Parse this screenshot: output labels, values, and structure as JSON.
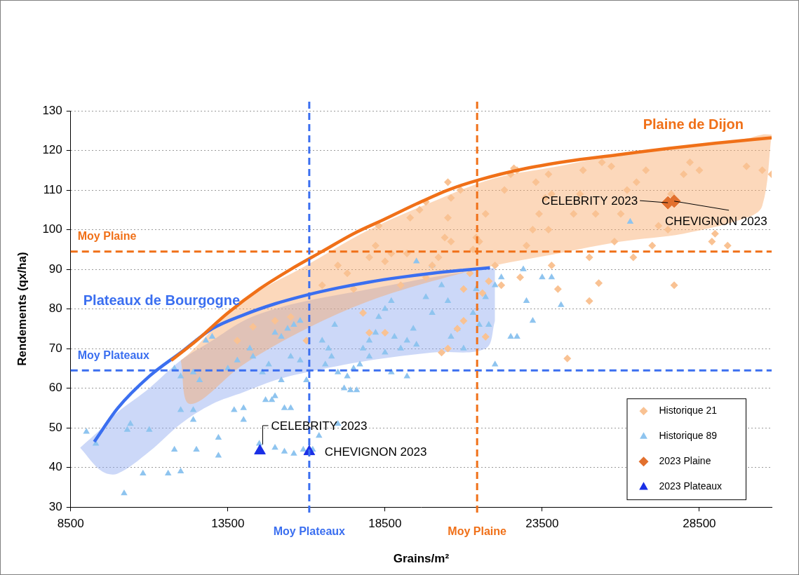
{
  "chart_data": {
    "type": "scatter",
    "x_label": "Grains/m²",
    "y_label": "Rendements (qx/ha)",
    "xlim": [
      8500,
      30800
    ],
    "xticks": [
      8500,
      13500,
      18500,
      23500,
      28500
    ],
    "ylim": [
      30,
      130
    ],
    "yticks": [
      30,
      40,
      50,
      60,
      70,
      80,
      90,
      100,
      110,
      120,
      130
    ],
    "grid": true,
    "legend": "lower right",
    "series": [
      {
        "name": "Historique 21",
        "color": "#f9c293",
        "marker": "diamond",
        "x": [
          13800,
          14300,
          15000,
          15500,
          16000,
          16500,
          17000,
          17300,
          17500,
          17800,
          18000,
          18200,
          18300,
          18500,
          18700,
          18000,
          18500,
          19000,
          19200,
          19300,
          19600,
          19800,
          19800,
          20000,
          20200,
          20400,
          20500,
          20600,
          20300,
          20500,
          20800,
          21000,
          21000,
          21200,
          21300,
          21400,
          20500,
          20600,
          20900,
          21500,
          21700,
          21600,
          21800,
          22000,
          22200,
          22300,
          22500,
          21700,
          22800,
          23000,
          23200,
          23400,
          23600,
          23800,
          22700,
          23300,
          23700,
          23800,
          24000,
          24300,
          23700,
          24500,
          24700,
          24800,
          25000,
          25200,
          25400,
          25700,
          25000,
          25300,
          25800,
          26000,
          26200,
          26500,
          26800,
          26400,
          27000,
          27200,
          27700,
          27500,
          27600,
          28000,
          28200,
          28500,
          28900,
          29000,
          29400,
          30000,
          30500,
          30800,
          22600
        ],
        "values": [
          72,
          75.5,
          77,
          78,
          72,
          86,
          91,
          89,
          85,
          79,
          93,
          96,
          101,
          92,
          94,
          74,
          74,
          86,
          94,
          103,
          105,
          107,
          88,
          91,
          93,
          98,
          103,
          97,
          69,
          70,
          75,
          77,
          85,
          89,
          95,
          98,
          112,
          108,
          110,
          97,
          104,
          84,
          87,
          91,
          86,
          110,
          114,
          73,
          88,
          96,
          100,
          104,
          108,
          109,
          115,
          112,
          114,
          91,
          85,
          67.5,
          100,
          104,
          109,
          115,
          93,
          104,
          117,
          116,
          82,
          86.5,
          97,
          104,
          110,
          112,
          115,
          93,
          96,
          101,
          86,
          100,
          109,
          114,
          117,
          115,
          97,
          99,
          96,
          116,
          115,
          114,
          115.5
        ]
      },
      {
        "name": "Historique 89",
        "color": "#8ec4ef",
        "marker": "triangle",
        "x": [
          9000,
          9300,
          10300,
          10400,
          10200,
          11000,
          10800,
          11600,
          12000,
          11800,
          12500,
          12000,
          12400,
          12400,
          11800,
          12000,
          12400,
          12600,
          12800,
          13000,
          13200,
          13200,
          13500,
          13800,
          14000,
          13700,
          14000,
          14200,
          14300,
          14500,
          14700,
          14900,
          15000,
          15300,
          15500,
          15200,
          15400,
          15600,
          15800,
          14600,
          14800,
          15000,
          15200,
          15500,
          15800,
          16000,
          15000,
          15300,
          15600,
          15900,
          16200,
          16400,
          16500,
          16700,
          16900,
          16600,
          16800,
          17000,
          17200,
          17400,
          17600,
          17000,
          17300,
          17500,
          17700,
          17800,
          18000,
          18200,
          18300,
          18500,
          18700,
          18000,
          18500,
          18800,
          19000,
          19200,
          19400,
          18700,
          19200,
          19500,
          19800,
          20000,
          20300,
          20500,
          20600,
          20800,
          21000,
          21300,
          21500,
          21800,
          22000,
          21400,
          21700,
          22000,
          22200,
          22500,
          22700,
          22900,
          23000,
          23200,
          23500,
          23800,
          24100,
          19500,
          20000,
          26300
        ],
        "values": [
          49,
          46,
          49.5,
          51,
          33.5,
          49.5,
          38.5,
          38.5,
          39,
          44.5,
          44.5,
          54.5,
          54.5,
          52,
          65,
          63,
          64,
          62,
          72,
          73,
          47.5,
          43,
          65,
          67,
          55,
          54.5,
          52,
          70,
          68,
          46,
          57,
          57,
          58,
          55,
          55,
          62,
          75,
          76,
          77,
          64,
          66,
          74,
          73,
          68,
          67,
          62,
          45,
          44,
          43.5,
          44.5,
          44.5,
          48,
          72,
          70,
          76,
          66,
          68,
          64,
          60,
          59.5,
          59.5,
          51,
          63,
          65,
          66,
          70,
          72,
          74,
          78,
          80,
          82,
          68,
          69,
          73,
          70,
          72,
          75,
          64,
          63,
          71,
          83,
          79,
          86,
          82,
          73,
          75,
          70,
          79,
          76,
          76,
          66,
          85,
          83,
          86,
          88,
          73,
          73,
          90,
          82,
          77,
          88,
          88,
          81,
          92,
          91,
          102
        ]
      },
      {
        "name": "2023 Plaine",
        "color": "#e2702e",
        "marker": "diamond",
        "x": [
          27500,
          27700
        ],
        "values": [
          106.8,
          107.2
        ],
        "point_labels": [
          "CELEBRITY 2023",
          "CHEVIGNON 2023"
        ]
      },
      {
        "name": "2023 Plateaux",
        "color": "#1a2fe6",
        "marker": "triangle",
        "x": [
          14520,
          16090
        ],
        "values": [
          44.2,
          44.0
        ],
        "point_labels": [
          "CELEBRITY 2023",
          "CHEVIGNON 2023"
        ]
      }
    ],
    "curves": [
      {
        "label": "Plaine de Dijon",
        "color": "#f07018",
        "line_style": "solid",
        "x": [
          11700,
          12500,
          13500,
          14500,
          15500,
          16500,
          17500,
          18500,
          19500,
          20500,
          21500,
          23000,
          24500,
          26000,
          27500,
          29000,
          30800
        ],
        "values": [
          67,
          72,
          79,
          85,
          90,
          94.5,
          99,
          102.7,
          106.5,
          110,
          112.6,
          115.5,
          117.5,
          119,
          120.5,
          121.8,
          123.2
        ]
      },
      {
        "label": "Plateaux de Bourgogne",
        "color": "#3b6ff0",
        "line_style": "solid",
        "x": [
          9250,
          10000,
          11000,
          12000,
          13000,
          14000,
          15000,
          16000,
          17000,
          18000,
          19000,
          20000,
          21000,
          21840
        ],
        "values": [
          46.5,
          55,
          63,
          69,
          75,
          78.5,
          81.3,
          83.5,
          85.3,
          86.8,
          88,
          89,
          89.8,
          90.4
        ]
      }
    ],
    "bands": [
      {
        "color": "#f9a868",
        "x": [
          12000,
          12300,
          14000,
          16000,
          18000,
          20000,
          22000,
          24000,
          26000,
          28000,
          30000,
          30500,
          30800
        ],
        "lower": [
          67,
          56,
          66,
          75,
          82,
          87,
          91,
          94,
          97,
          99,
          103,
          106,
          124
        ],
        "upper": [
          67,
          69,
          82,
          91,
          100,
          107,
          113,
          116,
          119,
          121,
          123,
          124,
          124
        ]
      },
      {
        "color": "#8ea8f0",
        "x": [
          8800,
          9500,
          10000,
          11000,
          12000,
          13000,
          14000,
          15000,
          16000,
          18000,
          20000,
          21700,
          22000
        ],
        "lower": [
          45,
          39,
          38.5,
          44,
          51,
          56,
          59,
          62,
          64,
          67,
          69,
          70,
          77
        ],
        "upper": [
          45,
          50,
          54,
          60,
          67,
          72,
          77,
          80,
          82,
          85,
          88,
          90,
          90.5
        ]
      }
    ],
    "reference_lines": [
      {
        "axis": "y",
        "value": 94.5,
        "label": "Moy Plaine",
        "color": "#f07018",
        "line_style": "dashed"
      },
      {
        "axis": "y",
        "value": 64.5,
        "label": "Moy Plateaux",
        "color": "#3b6ff0",
        "line_style": "dashed"
      },
      {
        "axis": "x",
        "value": 16090,
        "label": "Moy Plateaux",
        "color": "#3b6ff0",
        "line_style": "dashed"
      },
      {
        "axis": "x",
        "value": 21430,
        "label": "Moy Plaine",
        "color": "#f07018",
        "line_style": "dashed"
      }
    ]
  }
}
